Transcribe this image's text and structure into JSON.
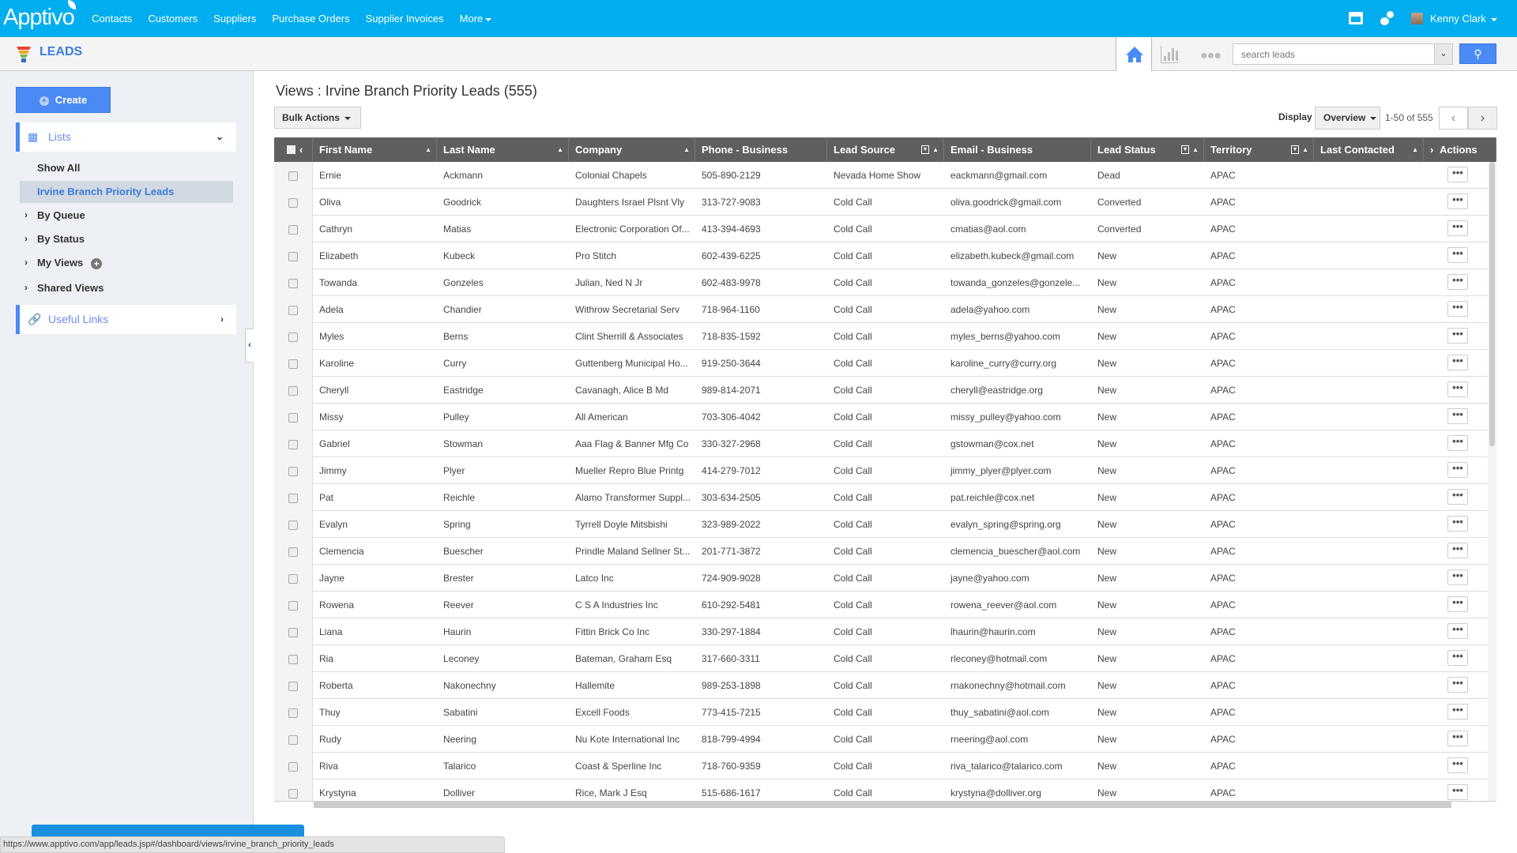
{
  "topbar": {
    "logo": "Apptivo",
    "nav": [
      "Contacts",
      "Customers",
      "Suppliers",
      "Purchase Orders",
      "Supplier Invoices",
      "More"
    ],
    "user": "Kenny Clark"
  },
  "subbar": {
    "app_title": "LEADS",
    "search_placeholder": "search leads"
  },
  "sidebar": {
    "create": "Create",
    "lists": "Lists",
    "show_all": "Show All",
    "selected": "Irvine Branch Priority Leads",
    "by_queue": "By Queue",
    "by_status": "By Status",
    "my_views": "My Views",
    "shared_views": "Shared Views",
    "useful_links": "Useful Links"
  },
  "main": {
    "title": "Views : Irvine Branch Priority Leads (555)",
    "bulk_actions": "Bulk Actions",
    "display_label": "Display",
    "display_value": "Overview",
    "pager": "1-50 of 555"
  },
  "table": {
    "columns": [
      "First Name",
      "Last Name",
      "Company",
      "Phone - Business",
      "Lead Source",
      "Email - Business",
      "Lead Status",
      "Territory",
      "Last Contacted",
      "Actions"
    ],
    "rows": [
      [
        "Ernie",
        "Ackmann",
        "Colonial Chapels",
        "505-890-2129",
        "Nevada Home Show",
        "eackmann@gmail.com",
        "Dead",
        "APAC",
        ""
      ],
      [
        "Oliva",
        "Goodrick",
        "Daughters Israel Plsnt Vly",
        "313-727-9083",
        "Cold Call",
        "oliva.goodrick@gmail.com",
        "Converted",
        "APAC",
        ""
      ],
      [
        "Cathryn",
        "Matias",
        "Electronic Corporation Of...",
        "413-394-4693",
        "Cold Call",
        "cmatias@aol.com",
        "Converted",
        "APAC",
        ""
      ],
      [
        "Elizabeth",
        "Kubeck",
        "Pro Stitch",
        "602-439-6225",
        "Cold Call",
        "elizabeth.kubeck@gmail.com",
        "New",
        "APAC",
        ""
      ],
      [
        "Towanda",
        "Gonzeles",
        "Julian, Ned N Jr",
        "602-483-9978",
        "Cold Call",
        "towanda_gonzeles@gonzele...",
        "New",
        "APAC",
        ""
      ],
      [
        "Adela",
        "Chandier",
        "Withrow Secretarial Serv",
        "718-964-1160",
        "Cold Call",
        "adela@yahoo.com",
        "New",
        "APAC",
        ""
      ],
      [
        "Myles",
        "Berns",
        "Clint Sherrill & Associates",
        "718-835-1592",
        "Cold Call",
        "myles_berns@yahoo.com",
        "New",
        "APAC",
        ""
      ],
      [
        "Karoline",
        "Curry",
        "Guttenberg Municipal Ho...",
        "919-250-3644",
        "Cold Call",
        "karoline_curry@curry.org",
        "New",
        "APAC",
        ""
      ],
      [
        "Cheryll",
        "Eastridge",
        "Cavanagh, Alice B Md",
        "989-814-2071",
        "Cold Call",
        "cheryll@eastridge.org",
        "New",
        "APAC",
        ""
      ],
      [
        "Missy",
        "Pulley",
        "All American",
        "703-306-4042",
        "Cold Call",
        "missy_pulley@yahoo.com",
        "New",
        "APAC",
        ""
      ],
      [
        "Gabriel",
        "Stowman",
        "Aaa Flag & Banner Mfg Co",
        "330-327-2968",
        "Cold Call",
        "gstowman@cox.net",
        "New",
        "APAC",
        ""
      ],
      [
        "Jimmy",
        "Plyer",
        "Mueller Repro Blue Printg",
        "414-279-7012",
        "Cold Call",
        "jimmy_plyer@plyer.com",
        "New",
        "APAC",
        ""
      ],
      [
        "Pat",
        "Reichle",
        "Alamo Transformer Suppl...",
        "303-634-2505",
        "Cold Call",
        "pat.reichle@cox.net",
        "New",
        "APAC",
        ""
      ],
      [
        "Evalyn",
        "Spring",
        "Tyrrell Doyle Mitsbishi",
        "323-989-2022",
        "Cold Call",
        "evalyn_spring@spring.org",
        "New",
        "APAC",
        ""
      ],
      [
        "Clemencia",
        "Buescher",
        "Prindle Maland Sellner St...",
        "201-771-3872",
        "Cold Call",
        "clemencia_buescher@aol.com",
        "New",
        "APAC",
        ""
      ],
      [
        "Jayne",
        "Brester",
        "Latco Inc",
        "724-909-9028",
        "Cold Call",
        "jayne@yahoo.com",
        "New",
        "APAC",
        ""
      ],
      [
        "Rowena",
        "Reever",
        "C S A Industries Inc",
        "610-292-5481",
        "Cold Call",
        "rowena_reever@aol.com",
        "New",
        "APAC",
        ""
      ],
      [
        "Liana",
        "Haurin",
        "Fittin Brick Co Inc",
        "330-297-1884",
        "Cold Call",
        "lhaurin@haurin.com",
        "New",
        "APAC",
        ""
      ],
      [
        "Ria",
        "Leconey",
        "Bateman, Graham Esq",
        "317-660-3311",
        "Cold Call",
        "rleconey@hotmail.com",
        "New",
        "APAC",
        ""
      ],
      [
        "Roberta",
        "Nakonechny",
        "Hallemite",
        "989-253-1898",
        "Cold Call",
        "rnakonechny@hotmail.com",
        "New",
        "APAC",
        ""
      ],
      [
        "Thuy",
        "Sabatini",
        "Excell Foods",
        "773-415-7215",
        "Cold Call",
        "thuy_sabatini@aol.com",
        "New",
        "APAC",
        ""
      ],
      [
        "Rudy",
        "Neering",
        "Nu Kote International Inc",
        "818-799-4994",
        "Cold Call",
        "rneering@aol.com",
        "New",
        "APAC",
        ""
      ],
      [
        "Riva",
        "Talarico",
        "Coast & Sperline Inc",
        "718-760-9359",
        "Cold Call",
        "riva_talarico@talarico.com",
        "New",
        "APAC",
        ""
      ],
      [
        "Krystyna",
        "Dolliver",
        "Rice, Mark J Esq",
        "515-686-1617",
        "Cold Call",
        "krystyna@dolliver.org",
        "New",
        "APAC",
        ""
      ]
    ],
    "actions_label": "•••"
  },
  "status_bar": "https://www.apptivo.com/app/leads.jsp#/dashboard/views/irvine_branch_priority_leads",
  "colors": {
    "topbar": "#00aeef",
    "accent": "#4a8af4",
    "table_header": "#5f5f5f"
  }
}
